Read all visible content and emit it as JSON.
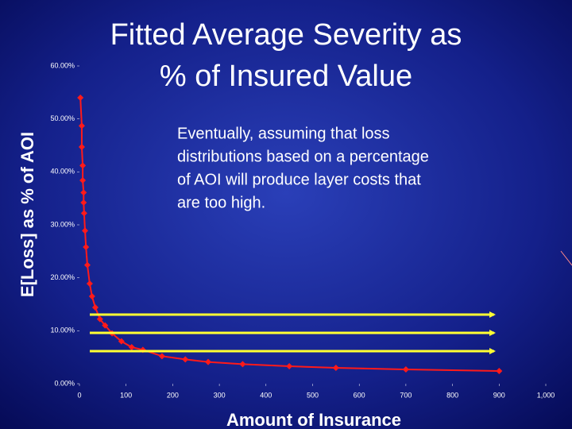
{
  "chart_data": {
    "type": "line",
    "title": [
      "Fitted Average Severity as",
      "% of Insured Value"
    ],
    "annotation": [
      "Eventually, assuming that loss",
      "distributions based on a percentage",
      "of AOI will produce layer costs that",
      "are too high."
    ],
    "x_label": "Amount of Insurance",
    "y_label": "E[Loss] as % of AOI",
    "x": [
      2,
      5,
      5,
      7,
      7,
      9,
      9,
      10,
      12,
      14,
      17,
      22,
      27,
      34,
      44,
      55,
      70,
      90,
      112,
      136,
      177,
      227,
      276,
      350,
      450,
      550,
      700,
      900
    ],
    "series": [
      {
        "color": "#ff1a1a",
        "values": [
          54,
          48.7,
          44.7,
          41.2,
          38.4,
          36.1,
          34.2,
          32.2,
          28.9,
          25.8,
          22.4,
          18.9,
          16.5,
          14.4,
          12.2,
          11,
          9.5,
          8,
          6.9,
          6.4,
          5.2,
          4.6,
          4.1,
          3.7,
          3.3,
          3.0,
          2.7,
          2.4
        ]
      }
    ],
    "xlim": [
      0,
      1000
    ],
    "xticks": [
      0,
      100,
      200,
      300,
      400,
      500,
      600,
      700,
      800,
      900,
      {
        "value": 1000,
        "label": "1,000"
      }
    ],
    "ylim": [
      0,
      60
    ],
    "yticks": [
      {
        "value": 0,
        "label": "0.00%"
      },
      {
        "value": 10,
        "label": "10.00%"
      },
      {
        "value": 20,
        "label": "20.00%"
      },
      {
        "value": 30,
        "label": "30.00%"
      },
      {
        "value": 40,
        "label": "40.00%"
      },
      {
        "value": 50,
        "label": "50.00%"
      },
      {
        "value": 60,
        "label": "60.00%"
      }
    ],
    "grid": false
  }
}
